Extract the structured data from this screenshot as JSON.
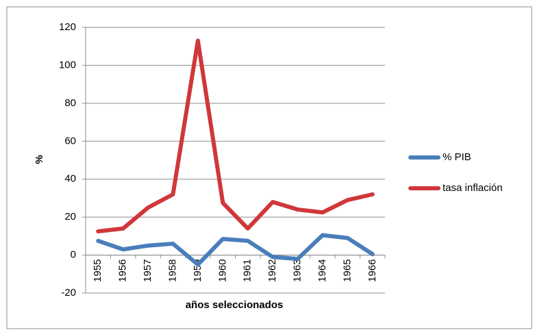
{
  "chart_data": {
    "type": "line",
    "categories": [
      "1955",
      "1956",
      "1957",
      "1958",
      "1959",
      "1960",
      "1961",
      "1962",
      "1963",
      "1964",
      "1965",
      "1966"
    ],
    "series": [
      {
        "name": "% PIB",
        "color": "#4a7ebb",
        "values": [
          7.5,
          3,
          5,
          6,
          -5,
          8.5,
          7.5,
          -1,
          -2,
          10.5,
          9,
          0.5
        ]
      },
      {
        "name": "tasa inflación",
        "color": "#d0373a",
        "values": [
          12.5,
          14,
          25,
          32,
          113,
          27.5,
          14,
          28,
          24,
          22.5,
          29,
          32
        ]
      }
    ],
    "ylabel": "%",
    "xlabel": "años seleccionados",
    "ylim": [
      -20,
      120
    ],
    "yticks": [
      -20,
      0,
      20,
      40,
      60,
      80,
      100,
      120
    ],
    "grid": true,
    "legend": "right"
  }
}
